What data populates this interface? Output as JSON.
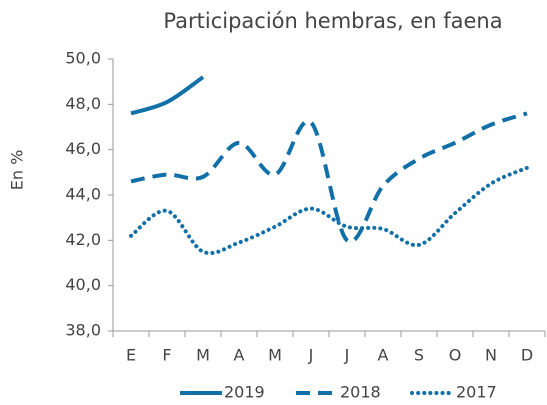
{
  "chart_data": {
    "type": "line",
    "title": "Participación hembras, en faena",
    "y_label": "En %",
    "categories": [
      "E",
      "F",
      "M",
      "A",
      "M",
      "J",
      "J",
      "A",
      "S",
      "O",
      "N",
      "D"
    ],
    "series": [
      {
        "name": "2019",
        "color": "#1170a8",
        "style": "solid",
        "values": [
          47.6,
          48.1,
          49.2,
          null,
          null,
          null,
          null,
          null,
          null,
          null,
          null,
          null
        ]
      },
      {
        "name": "2018",
        "color": "#1170a8",
        "style": "dashed",
        "values": [
          44.6,
          44.9,
          44.8,
          46.3,
          44.9,
          47.2,
          42.0,
          44.4,
          45.6,
          46.3,
          47.1,
          47.6
        ]
      },
      {
        "name": "2017",
        "color": "#1170a8",
        "style": "dotted",
        "values": [
          42.2,
          43.3,
          41.5,
          41.9,
          42.6,
          43.4,
          42.6,
          42.5,
          41.8,
          43.2,
          44.5,
          45.2
        ]
      }
    ],
    "ylim": [
      38,
      50
    ],
    "yticks": [
      {
        "value": 38,
        "label": "38,0"
      },
      {
        "value": 40,
        "label": "40,0"
      },
      {
        "value": 42,
        "label": "42,0"
      },
      {
        "value": 44,
        "label": "44,0"
      },
      {
        "value": 46,
        "label": "46,0"
      },
      {
        "value": 48,
        "label": "48,0"
      },
      {
        "value": 50,
        "label": "50,0"
      }
    ],
    "legend": "bottom"
  }
}
